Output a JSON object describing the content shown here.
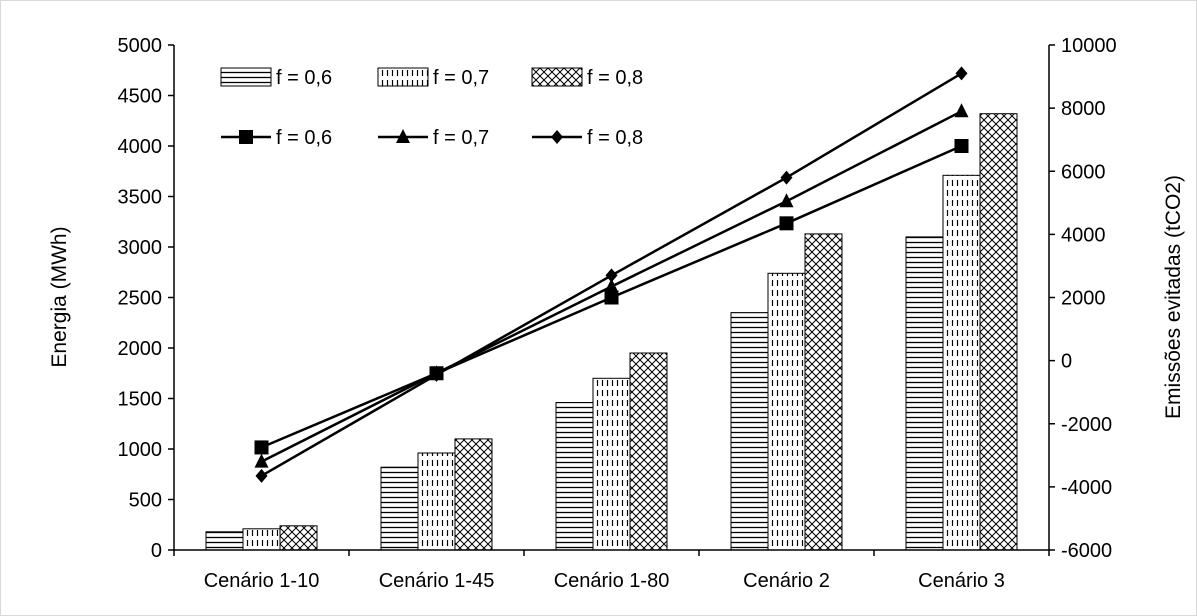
{
  "chart_data": {
    "type": "bar+line",
    "title": "",
    "categories": [
      "Cenário 1-10",
      "Cenário 1-45",
      "Cenário 1-80",
      "Cenário 2",
      "Cenário 3"
    ],
    "ylabel": "Energia (MWh)",
    "y2label": "Emissões evitadas (tCO2)",
    "ylim": [
      0,
      5000
    ],
    "y2lim": [
      -6000,
      10000
    ],
    "yticks": [
      "0",
      "500",
      "1000",
      "1500",
      "2000",
      "2500",
      "3000",
      "3500",
      "4000",
      "4500",
      "5000"
    ],
    "y2ticks": [
      "-6000",
      "-4000",
      "-2000",
      "0",
      "2000",
      "4000",
      "6000",
      "8000",
      "10000"
    ],
    "grid": false,
    "legend_position": "top-left",
    "bar_series": [
      {
        "name": "f = 0,6",
        "pattern": "horizontal-lines",
        "values": [
          180,
          820,
          1460,
          2350,
          3100
        ]
      },
      {
        "name": "f = 0,7",
        "pattern": "vertical-dashes",
        "values": [
          210,
          960,
          1700,
          2740,
          3710
        ]
      },
      {
        "name": "f = 0,8",
        "pattern": "crosshatch",
        "values": [
          240,
          1100,
          1950,
          3130,
          4320
        ]
      }
    ],
    "line_series": [
      {
        "name": "f = 0,6",
        "marker": "square",
        "values": [
          -2750,
          -400,
          2000,
          4350,
          6800
        ]
      },
      {
        "name": "f = 0,7",
        "marker": "triangle",
        "values": [
          -3200,
          -400,
          2350,
          5050,
          7900
        ]
      },
      {
        "name": "f = 0,8",
        "marker": "diamond",
        "values": [
          -3650,
          -450,
          2700,
          5800,
          9100
        ]
      }
    ]
  }
}
